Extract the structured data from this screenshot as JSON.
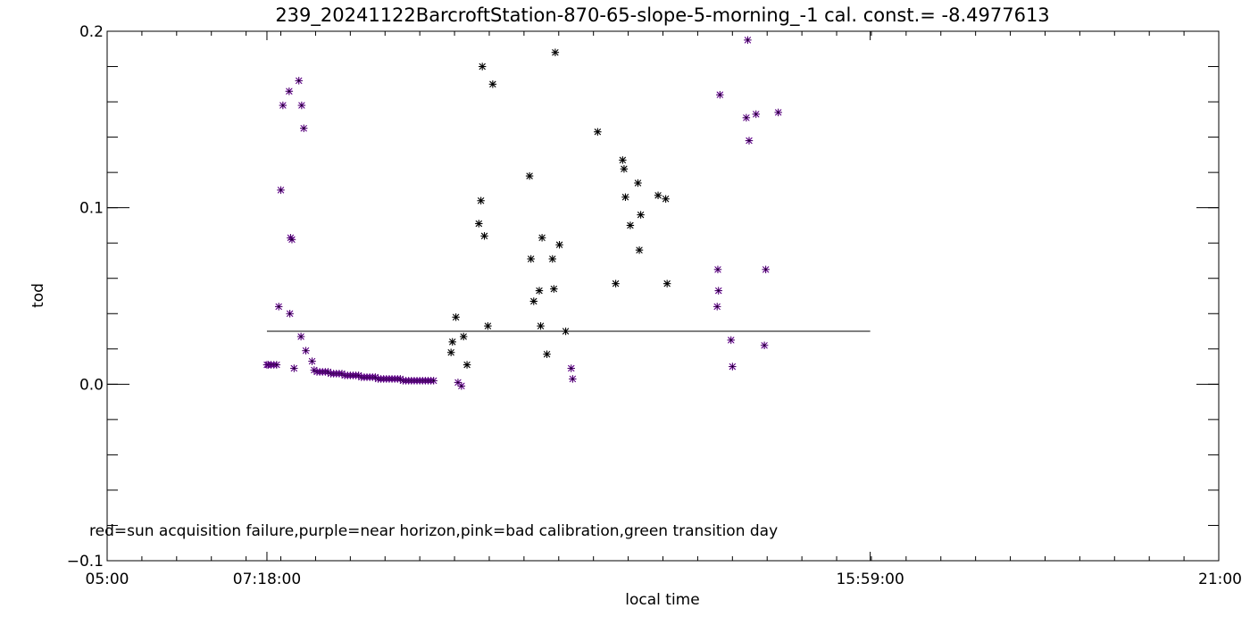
{
  "chart_data": {
    "type": "scatter",
    "title": "239_20241122BarcroftStation-870-65-slope-5-morning_-1 cal. const.= -8.4977613",
    "xlabel": "local time",
    "ylabel": "tod",
    "note": "red=sun acquisition failure,purple=near horizon,pink=bad calibration,green transition day",
    "x_unit": "hours",
    "xlim": [
      5.0,
      21.0
    ],
    "ylim": [
      -0.1,
      0.2
    ],
    "x_ticks": [
      {
        "value": 5.0,
        "label": "05:00"
      },
      {
        "value": 7.3,
        "label": "07:18:00"
      },
      {
        "value": 15.9833,
        "label": "15:59:00"
      },
      {
        "value": 21.0,
        "label": "21:00"
      }
    ],
    "y_ticks": [
      {
        "value": -0.1,
        "label": "−0.1"
      },
      {
        "value": 0.0,
        "label": "0.0"
      },
      {
        "value": 0.1,
        "label": "0.1"
      },
      {
        "value": 0.2,
        "label": "0.2"
      }
    ],
    "x_minor_step": 0.5,
    "y_minor_step": 0.02,
    "grid": false,
    "reference_line": {
      "x_start": 7.3,
      "x_end": 15.9833,
      "y": 0.03
    },
    "colors": {
      "normal": "#000000",
      "near_horizon": "#8b00c8"
    },
    "series": [
      {
        "category": "near_horizon",
        "points": [
          [
            7.3,
            0.011
          ],
          [
            7.32,
            0.011
          ],
          [
            7.36,
            0.011
          ],
          [
            7.4,
            0.011
          ],
          [
            7.44,
            0.011
          ],
          [
            7.47,
            0.044
          ],
          [
            7.5,
            0.11
          ],
          [
            7.53,
            0.158
          ],
          [
            7.62,
            0.166
          ],
          [
            7.63,
            0.04
          ],
          [
            7.64,
            0.083
          ],
          [
            7.66,
            0.082
          ],
          [
            7.69,
            0.009
          ],
          [
            7.76,
            0.172
          ],
          [
            7.79,
            0.027
          ],
          [
            7.8,
            0.158
          ],
          [
            7.83,
            0.145
          ],
          [
            7.86,
            0.019
          ],
          [
            7.95,
            0.013
          ],
          [
            7.98,
            0.008
          ],
          [
            8.02,
            0.007
          ],
          [
            8.06,
            0.007
          ],
          [
            8.1,
            0.007
          ],
          [
            8.14,
            0.007
          ],
          [
            8.18,
            0.007
          ],
          [
            8.22,
            0.006
          ],
          [
            8.26,
            0.006
          ],
          [
            8.3,
            0.006
          ],
          [
            8.34,
            0.006
          ],
          [
            8.38,
            0.006
          ],
          [
            8.42,
            0.005
          ],
          [
            8.46,
            0.005
          ],
          [
            8.5,
            0.005
          ],
          [
            8.54,
            0.005
          ],
          [
            8.58,
            0.005
          ],
          [
            8.62,
            0.005
          ],
          [
            8.66,
            0.004
          ],
          [
            8.7,
            0.004
          ],
          [
            8.74,
            0.004
          ],
          [
            8.78,
            0.004
          ],
          [
            8.82,
            0.004
          ],
          [
            8.86,
            0.004
          ],
          [
            8.9,
            0.003
          ],
          [
            8.94,
            0.003
          ],
          [
            8.98,
            0.003
          ],
          [
            9.02,
            0.003
          ],
          [
            9.06,
            0.003
          ],
          [
            9.1,
            0.003
          ],
          [
            9.14,
            0.003
          ],
          [
            9.18,
            0.003
          ],
          [
            9.22,
            0.003
          ],
          [
            9.26,
            0.002
          ],
          [
            9.3,
            0.002
          ],
          [
            9.34,
            0.002
          ],
          [
            9.38,
            0.002
          ],
          [
            9.42,
            0.002
          ],
          [
            9.46,
            0.002
          ],
          [
            9.5,
            0.002
          ],
          [
            9.54,
            0.002
          ],
          [
            9.58,
            0.002
          ],
          [
            9.62,
            0.002
          ],
          [
            9.66,
            0.002
          ],
          [
            9.7,
            0.002
          ],
          [
            10.05,
            0.001
          ],
          [
            10.1,
            -0.001
          ],
          [
            11.68,
            0.009
          ],
          [
            11.7,
            0.003
          ],
          [
            13.78,
            0.044
          ],
          [
            13.79,
            0.065
          ],
          [
            13.8,
            0.053
          ],
          [
            13.82,
            0.164
          ],
          [
            13.98,
            0.025
          ],
          [
            14.0,
            0.01
          ],
          [
            14.2,
            0.151
          ],
          [
            14.22,
            0.195
          ],
          [
            14.24,
            0.138
          ],
          [
            14.34,
            0.153
          ],
          [
            14.46,
            0.022
          ],
          [
            14.48,
            0.065
          ],
          [
            14.66,
            0.154
          ]
        ]
      },
      {
        "category": "normal",
        "points": [
          [
            9.95,
            0.018
          ],
          [
            9.97,
            0.024
          ],
          [
            10.02,
            0.038
          ],
          [
            10.13,
            0.027
          ],
          [
            10.18,
            0.011
          ],
          [
            10.35,
            0.091
          ],
          [
            10.38,
            0.104
          ],
          [
            10.4,
            0.18
          ],
          [
            10.43,
            0.084
          ],
          [
            10.48,
            0.033
          ],
          [
            10.55,
            0.17
          ],
          [
            11.08,
            0.118
          ],
          [
            11.1,
            0.071
          ],
          [
            11.14,
            0.047
          ],
          [
            11.22,
            0.053
          ],
          [
            11.24,
            0.033
          ],
          [
            11.26,
            0.083
          ],
          [
            11.33,
            0.017
          ],
          [
            11.41,
            0.071
          ],
          [
            11.43,
            0.054
          ],
          [
            11.45,
            0.188
          ],
          [
            11.51,
            0.079
          ],
          [
            11.6,
            0.03
          ],
          [
            12.06,
            0.143
          ],
          [
            12.32,
            0.057
          ],
          [
            12.42,
            0.127
          ],
          [
            12.44,
            0.122
          ],
          [
            12.46,
            0.106
          ],
          [
            12.53,
            0.09
          ],
          [
            12.64,
            0.114
          ],
          [
            12.66,
            0.076
          ],
          [
            12.68,
            0.096
          ],
          [
            12.93,
            0.107
          ],
          [
            13.04,
            0.105
          ],
          [
            13.06,
            0.057
          ]
        ]
      }
    ]
  }
}
